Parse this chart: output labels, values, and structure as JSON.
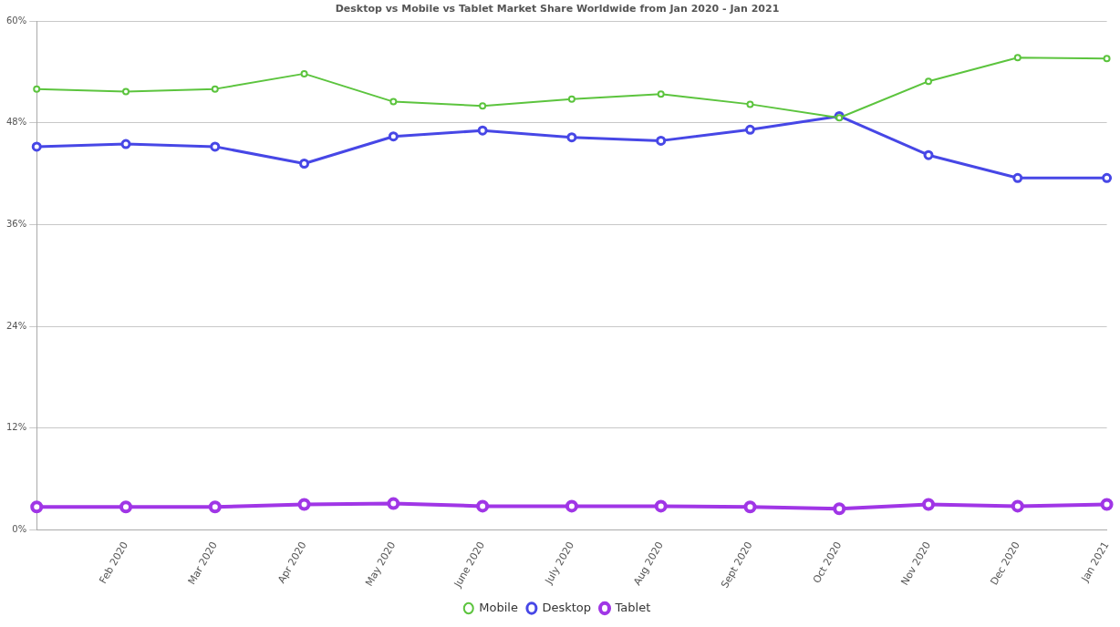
{
  "chart_data": {
    "type": "line",
    "subtitle": "Desktop vs Mobile vs Tablet Market Share Worldwide from Jan 2020 - Jan 2021",
    "categories": [
      null,
      "Feb 2020",
      "Mar 2020",
      "Apr 2020",
      "May 2020",
      "June 2020",
      "July 2020",
      "Aug 2020",
      "Sept 2020",
      "Oct 2020",
      "Nov 2020",
      "Dec 2020",
      "Jan 2021"
    ],
    "series": [
      {
        "name": "Mobile",
        "color": "#5cc43e",
        "values": [
          52.0,
          51.7,
          52.0,
          53.8,
          50.5,
          50.0,
          50.8,
          51.4,
          50.2,
          48.6,
          52.9,
          55.7,
          55.6
        ]
      },
      {
        "name": "Desktop",
        "color": "#4747e6",
        "values": [
          45.2,
          45.5,
          45.2,
          43.2,
          46.4,
          47.1,
          46.3,
          45.9,
          47.2,
          48.8,
          44.2,
          41.5,
          41.5
        ]
      },
      {
        "name": "Tablet",
        "color": "#a036e6",
        "values": [
          2.7,
          2.7,
          2.7,
          3.0,
          3.1,
          2.8,
          2.8,
          2.8,
          2.7,
          2.5,
          3.0,
          2.8,
          3.0
        ]
      }
    ],
    "ylim": [
      0,
      60
    ],
    "yticks": [
      {
        "value": 0,
        "label": "0%"
      },
      {
        "value": 12,
        "label": "12%"
      },
      {
        "value": 24,
        "label": "24%"
      },
      {
        "value": 36,
        "label": "36%"
      },
      {
        "value": 48,
        "label": "48%"
      },
      {
        "value": 60,
        "label": "60%"
      }
    ],
    "grid": "y",
    "legend": "bottom",
    "marker": "circle",
    "line_style": "solid"
  }
}
